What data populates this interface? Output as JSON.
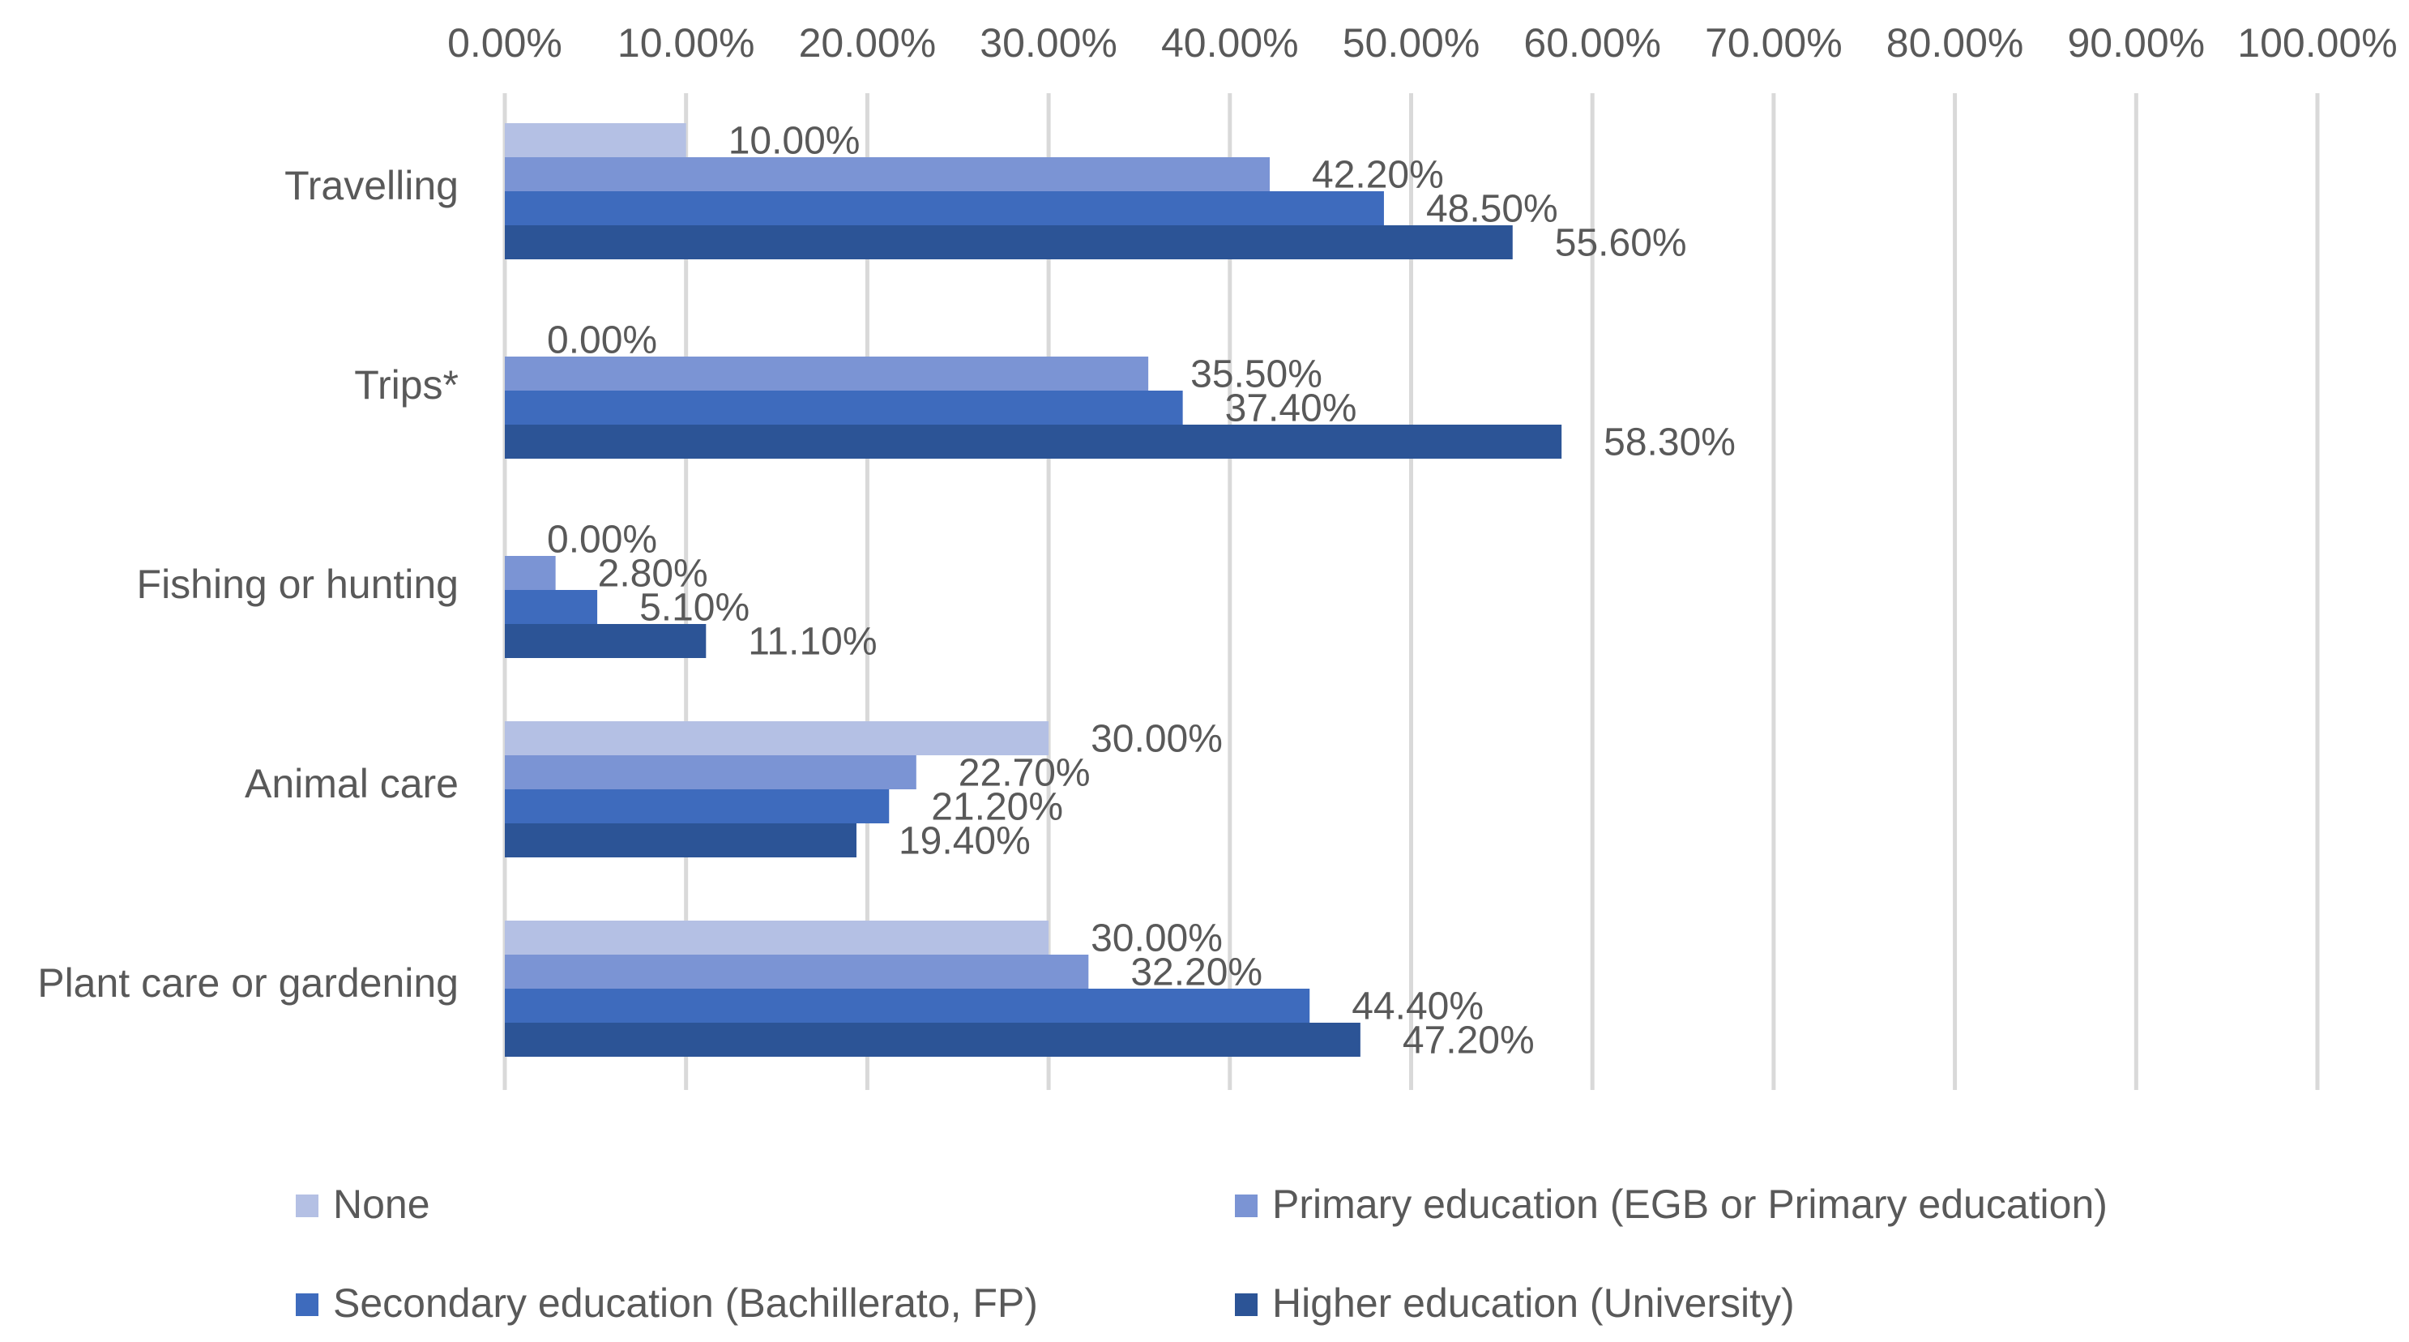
{
  "chart_data": {
    "type": "bar",
    "orientation": "horizontal",
    "title": "",
    "xlabel": "",
    "ylabel": "",
    "xlim": [
      0,
      100
    ],
    "x_ticks": [
      0,
      10,
      20,
      30,
      40,
      50,
      60,
      70,
      80,
      90,
      100
    ],
    "x_tick_labels": [
      "0.00%",
      "10.00%",
      "20.00%",
      "30.00%",
      "40.00%",
      "50.00%",
      "60.00%",
      "70.00%",
      "80.00%",
      "90.00%",
      "100.00%"
    ],
    "x_axis_position": "top",
    "grid": true,
    "legend_position": "bottom",
    "categories": [
      "Travelling",
      "Trips*",
      "Fishing or hunting",
      "Animal care",
      "Plant care or gardening"
    ],
    "series": [
      {
        "name": "None",
        "color": "#b4c0e4",
        "values": [
          10.0,
          0.0,
          0.0,
          30.0,
          30.0
        ],
        "labels": [
          "10.00%",
          "0.00%",
          "0.00%",
          "30.00%",
          "30.00%"
        ]
      },
      {
        "name": "Primary education (EGB or Primary education)",
        "color": "#7b94d4",
        "values": [
          42.2,
          35.5,
          2.8,
          22.7,
          32.2
        ],
        "labels": [
          "42.20%",
          "35.50%",
          "2.80%",
          "22.70%",
          "32.20%"
        ]
      },
      {
        "name": "Secondary education (Bachillerato, FP)",
        "color": "#3e6bbd",
        "values": [
          48.5,
          37.4,
          5.1,
          21.2,
          44.4
        ],
        "labels": [
          "48.50%",
          "37.40%",
          "5.10%",
          "21.20%",
          "44.40%"
        ]
      },
      {
        "name": "Higher education (University)",
        "color": "#2c5496",
        "values": [
          55.6,
          58.3,
          11.1,
          19.4,
          47.2
        ],
        "labels": [
          "55.60%",
          "58.30%",
          "11.10%",
          "19.40%",
          "47.20%"
        ]
      }
    ]
  }
}
